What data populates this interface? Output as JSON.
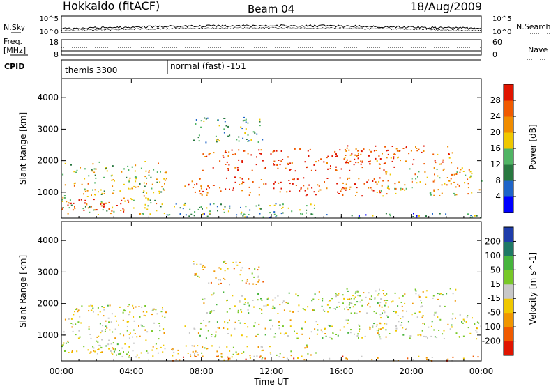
{
  "header": {
    "station": "Hokkaido (fitACF)",
    "beam": "Beam 04",
    "date": "18/Aug/2009"
  },
  "top_panels": {
    "nsky_label": "N.Sky",
    "nsearch_label": "N.Search",
    "noise_ticks": [
      "10^5",
      "10^0"
    ],
    "freq_label_1": "Freq.",
    "freq_label_2": "[MHz]",
    "freq_ticks": [
      "18",
      "8"
    ],
    "nave_label": "Nave",
    "nave_ticks": [
      "60",
      "0"
    ],
    "cpid_label": "CPID",
    "cpid_modes": [
      {
        "name": "themis 3300",
        "start_hour": 0,
        "end_hour": 6
      },
      {
        "name": "normal (fast) -151",
        "start_hour": 6,
        "end_hour": 24
      }
    ]
  },
  "time_axis": {
    "label": "Time UT",
    "ticks": [
      "00:00",
      "04:00",
      "08:00",
      "12:00",
      "16:00",
      "20:00",
      "00:00"
    ],
    "tick_hours": [
      0,
      4,
      8,
      12,
      16,
      20,
      24
    ]
  },
  "chart_data": [
    {
      "type": "heatmap",
      "title": "Power",
      "xlabel": "Time UT",
      "ylabel": "Slant Range [km]",
      "xlim_hours": [
        0,
        24
      ],
      "ylim_km": [
        180,
        4600
      ],
      "y_ticks": [
        1000,
        2000,
        3000,
        4000
      ],
      "colorbar": {
        "label": "Power [dB]",
        "ticks": [
          28,
          24,
          20,
          16,
          12,
          8,
          4
        ],
        "colors": [
          "#0000ff",
          "#1e64c8",
          "#287840",
          "#50b464",
          "#f0c800",
          "#f08c00",
          "#f05a00",
          "#e01400"
        ]
      }
    },
    {
      "type": "heatmap",
      "title": "Velocity",
      "xlabel": "Time UT",
      "ylabel": "Slant Range [km]",
      "xlim_hours": [
        0,
        24
      ],
      "ylim_km": [
        180,
        4600
      ],
      "y_ticks": [
        1000,
        2000,
        3000,
        4000
      ],
      "colorbar": {
        "label": "Velocity [m s^-1]",
        "ticks": [
          200,
          100,
          50,
          15,
          -15,
          -50,
          -100,
          -200
        ],
        "colors": [
          "#1e3caa",
          "#1e7864",
          "#46b43c",
          "#78c828",
          "#c8c8c8",
          "#f0c800",
          "#f09600",
          "#f05a00",
          "#e01400"
        ]
      }
    }
  ]
}
